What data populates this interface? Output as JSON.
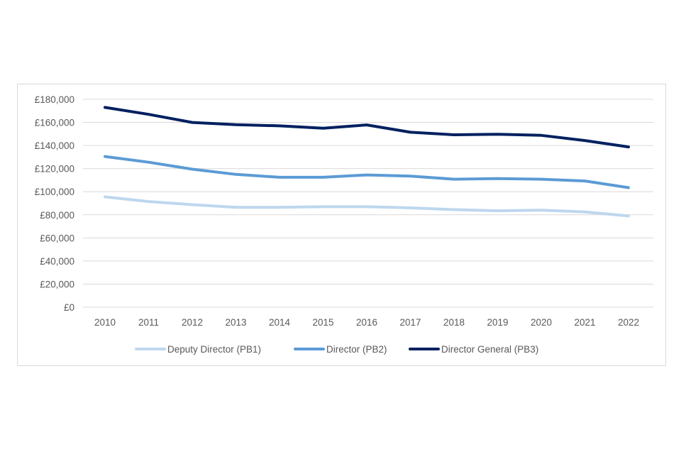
{
  "chart_data": {
    "type": "line",
    "title": "",
    "xlabel": "",
    "ylabel": "",
    "x": [
      2010,
      2011,
      2012,
      2013,
      2014,
      2015,
      2016,
      2017,
      2018,
      2019,
      2020,
      2021,
      2022
    ],
    "ylim": [
      0,
      180000
    ],
    "y_ticks": [
      0,
      20000,
      40000,
      60000,
      80000,
      100000,
      120000,
      140000,
      160000,
      180000
    ],
    "y_tick_labels": [
      "£0",
      "£20,000",
      "£40,000",
      "£60,000",
      "£80,000",
      "£100,000",
      "£120,000",
      "£140,000",
      "£160,000",
      "£180,000"
    ],
    "grid": "horizontal",
    "legend_position": "bottom",
    "series": [
      {
        "name": "Deputy Director (PB1)",
        "color": "#bdd7ee",
        "values": [
          95500,
          91500,
          88800,
          86500,
          86500,
          87000,
          87000,
          86000,
          84500,
          83500,
          84000,
          82500,
          79000
        ]
      },
      {
        "name": "Director (PB2)",
        "color": "#5b9bd5",
        "values": [
          130500,
          125500,
          119500,
          115000,
          112500,
          112500,
          114500,
          113500,
          110800,
          111300,
          110800,
          109300,
          103500
        ]
      },
      {
        "name": "Director General (PB3)",
        "color": "#002060",
        "values": [
          173000,
          167000,
          160000,
          158000,
          157000,
          155000,
          157800,
          151500,
          149300,
          149800,
          148800,
          144300,
          138800
        ]
      }
    ]
  }
}
